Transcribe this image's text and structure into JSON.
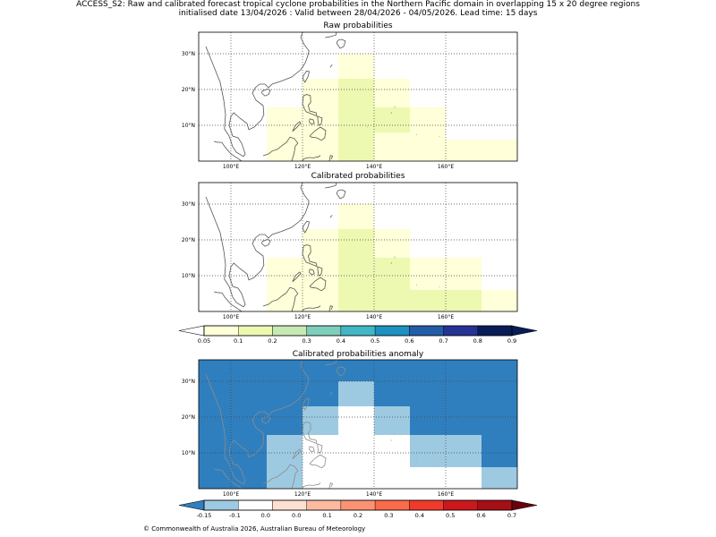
{
  "title_line1": "ACCESS_S2: Raw and calibrated forecast tropical cyclone probabilities in the Northern Pacific domain in overlapping 15 x 20 degree regions",
  "title_line2": "initialised date 13/04/2026 :  Valid between 28/04/2026 - 04/05/2026. Lead time: 15 days",
  "footer": "© Commonwealth of Australia 2026, Australian Bureau of Meteorology",
  "map": {
    "lon_range": [
      91,
      180
    ],
    "lat_range": [
      0,
      36
    ],
    "lon_ticks": [
      100,
      120,
      140,
      160
    ],
    "lat_ticks": [
      10,
      20,
      30
    ],
    "lon_tick_labels": [
      "100°E",
      "120°E",
      "140°E",
      "160°E"
    ],
    "lat_tick_labels": [
      "10°N",
      "20°N",
      "30°N"
    ]
  },
  "panels": [
    {
      "title": "Raw probabilities",
      "background": "#ffffff",
      "cells": [
        {
          "lon": [
            110,
            120
          ],
          "lat": [
            0,
            15
          ],
          "color": "#ffffd9"
        },
        {
          "lon": [
            120,
            130
          ],
          "lat": [
            0,
            15
          ],
          "color": "#ffffd9"
        },
        {
          "lon": [
            130,
            150
          ],
          "lat": [
            0,
            15
          ],
          "color": "#edf8b1"
        },
        {
          "lon": [
            150,
            160
          ],
          "lat": [
            0,
            15
          ],
          "color": "#ffffd9"
        },
        {
          "lon": [
            130,
            140
          ],
          "lat": [
            15,
            23
          ],
          "color": "#edf8b1"
        },
        {
          "lon": [
            140,
            150
          ],
          "lat": [
            15,
            23
          ],
          "color": "#ffffd9"
        },
        {
          "lon": [
            140,
            150
          ],
          "lat": [
            0,
            8
          ],
          "color": "#ffffd9"
        },
        {
          "lon": [
            160,
            180
          ],
          "lat": [
            0,
            6
          ],
          "color": "#ffffd9"
        },
        {
          "lon": [
            140,
            150
          ],
          "lat": [
            8,
            15
          ],
          "color": "#edf8b1"
        },
        {
          "lon": [
            130,
            140
          ],
          "lat": [
            15,
            23
          ],
          "color": "#edf8b1"
        },
        {
          "lon": [
            120,
            130
          ],
          "lat": [
            15,
            23
          ],
          "color": "#ffffd9"
        },
        {
          "lon": [
            130,
            140
          ],
          "lat": [
            23,
            30
          ],
          "color": "#ffffd9"
        }
      ]
    },
    {
      "title": "Calibrated probabilities",
      "background": "#ffffff",
      "cells": [
        {
          "lon": [
            110,
            120
          ],
          "lat": [
            0,
            15
          ],
          "color": "#ffffd9"
        },
        {
          "lon": [
            120,
            130
          ],
          "lat": [
            0,
            15
          ],
          "color": "#ffffd9"
        },
        {
          "lon": [
            130,
            150
          ],
          "lat": [
            0,
            15
          ],
          "color": "#edf8b1"
        },
        {
          "lon": [
            150,
            170
          ],
          "lat": [
            6,
            15
          ],
          "color": "#ffffd9"
        },
        {
          "lon": [
            150,
            170
          ],
          "lat": [
            0,
            6
          ],
          "color": "#edf8b1"
        },
        {
          "lon": [
            170,
            180
          ],
          "lat": [
            0,
            6
          ],
          "color": "#ffffd9"
        },
        {
          "lon": [
            120,
            130
          ],
          "lat": [
            15,
            23
          ],
          "color": "#ffffd9"
        },
        {
          "lon": [
            130,
            140
          ],
          "lat": [
            15,
            23
          ],
          "color": "#edf8b1"
        },
        {
          "lon": [
            140,
            150
          ],
          "lat": [
            15,
            23
          ],
          "color": "#ffffd9"
        },
        {
          "lon": [
            130,
            140
          ],
          "lat": [
            23,
            30
          ],
          "color": "#ffffd9"
        }
      ]
    },
    {
      "title": "Calibrated probabilities anomaly",
      "background": "#2f7fbf",
      "cells": [
        {
          "lon": [
            110,
            120
          ],
          "lat": [
            0,
            15
          ],
          "color": "#9ecae1"
        },
        {
          "lon": [
            120,
            130
          ],
          "lat": [
            15,
            23
          ],
          "color": "#9ecae1"
        },
        {
          "lon": [
            130,
            140
          ],
          "lat": [
            23,
            30
          ],
          "color": "#9ecae1"
        },
        {
          "lon": [
            140,
            150
          ],
          "lat": [
            15,
            23
          ],
          "color": "#9ecae1"
        },
        {
          "lon": [
            150,
            170
          ],
          "lat": [
            6,
            15
          ],
          "color": "#9ecae1"
        },
        {
          "lon": [
            170,
            180
          ],
          "lat": [
            0,
            6
          ],
          "color": "#9ecae1"
        },
        {
          "lon": [
            120,
            150
          ],
          "lat": [
            0,
            15
          ],
          "color": "#ffffff"
        },
        {
          "lon": [
            130,
            140
          ],
          "lat": [
            15,
            23
          ],
          "color": "#ffffff"
        },
        {
          "lon": [
            150,
            170
          ],
          "lat": [
            0,
            6
          ],
          "color": "#ffffff"
        }
      ]
    }
  ],
  "colorbar_prob": {
    "labels": [
      "0.05",
      "0.1",
      "0.2",
      "0.3",
      "0.4",
      "0.5",
      "0.6",
      "0.7",
      "0.8",
      "0.9"
    ],
    "under_color": "#ffffff",
    "colors": [
      "#ffffd9",
      "#edf8b1",
      "#c7e9b4",
      "#7fcdbb",
      "#41b6c4",
      "#1d91c0",
      "#225ea8",
      "#253494",
      "#081d58"
    ],
    "over_color": "#081d58"
  },
  "colorbar_anom": {
    "labels": [
      "-0.15",
      "-0.1",
      "0.0",
      "0.0",
      "0.1",
      "0.2",
      "0.3",
      "0.4",
      "0.5",
      "0.6",
      "0.7"
    ],
    "under_color": "#2f7fbf",
    "colors": [
      "#9ecae1",
      "#ffffff",
      "#fee0d2",
      "#fcbba1",
      "#fc9272",
      "#fb6a4a",
      "#ef3b2c",
      "#cb181d",
      "#a50f15"
    ],
    "over_color": "#67000d"
  }
}
